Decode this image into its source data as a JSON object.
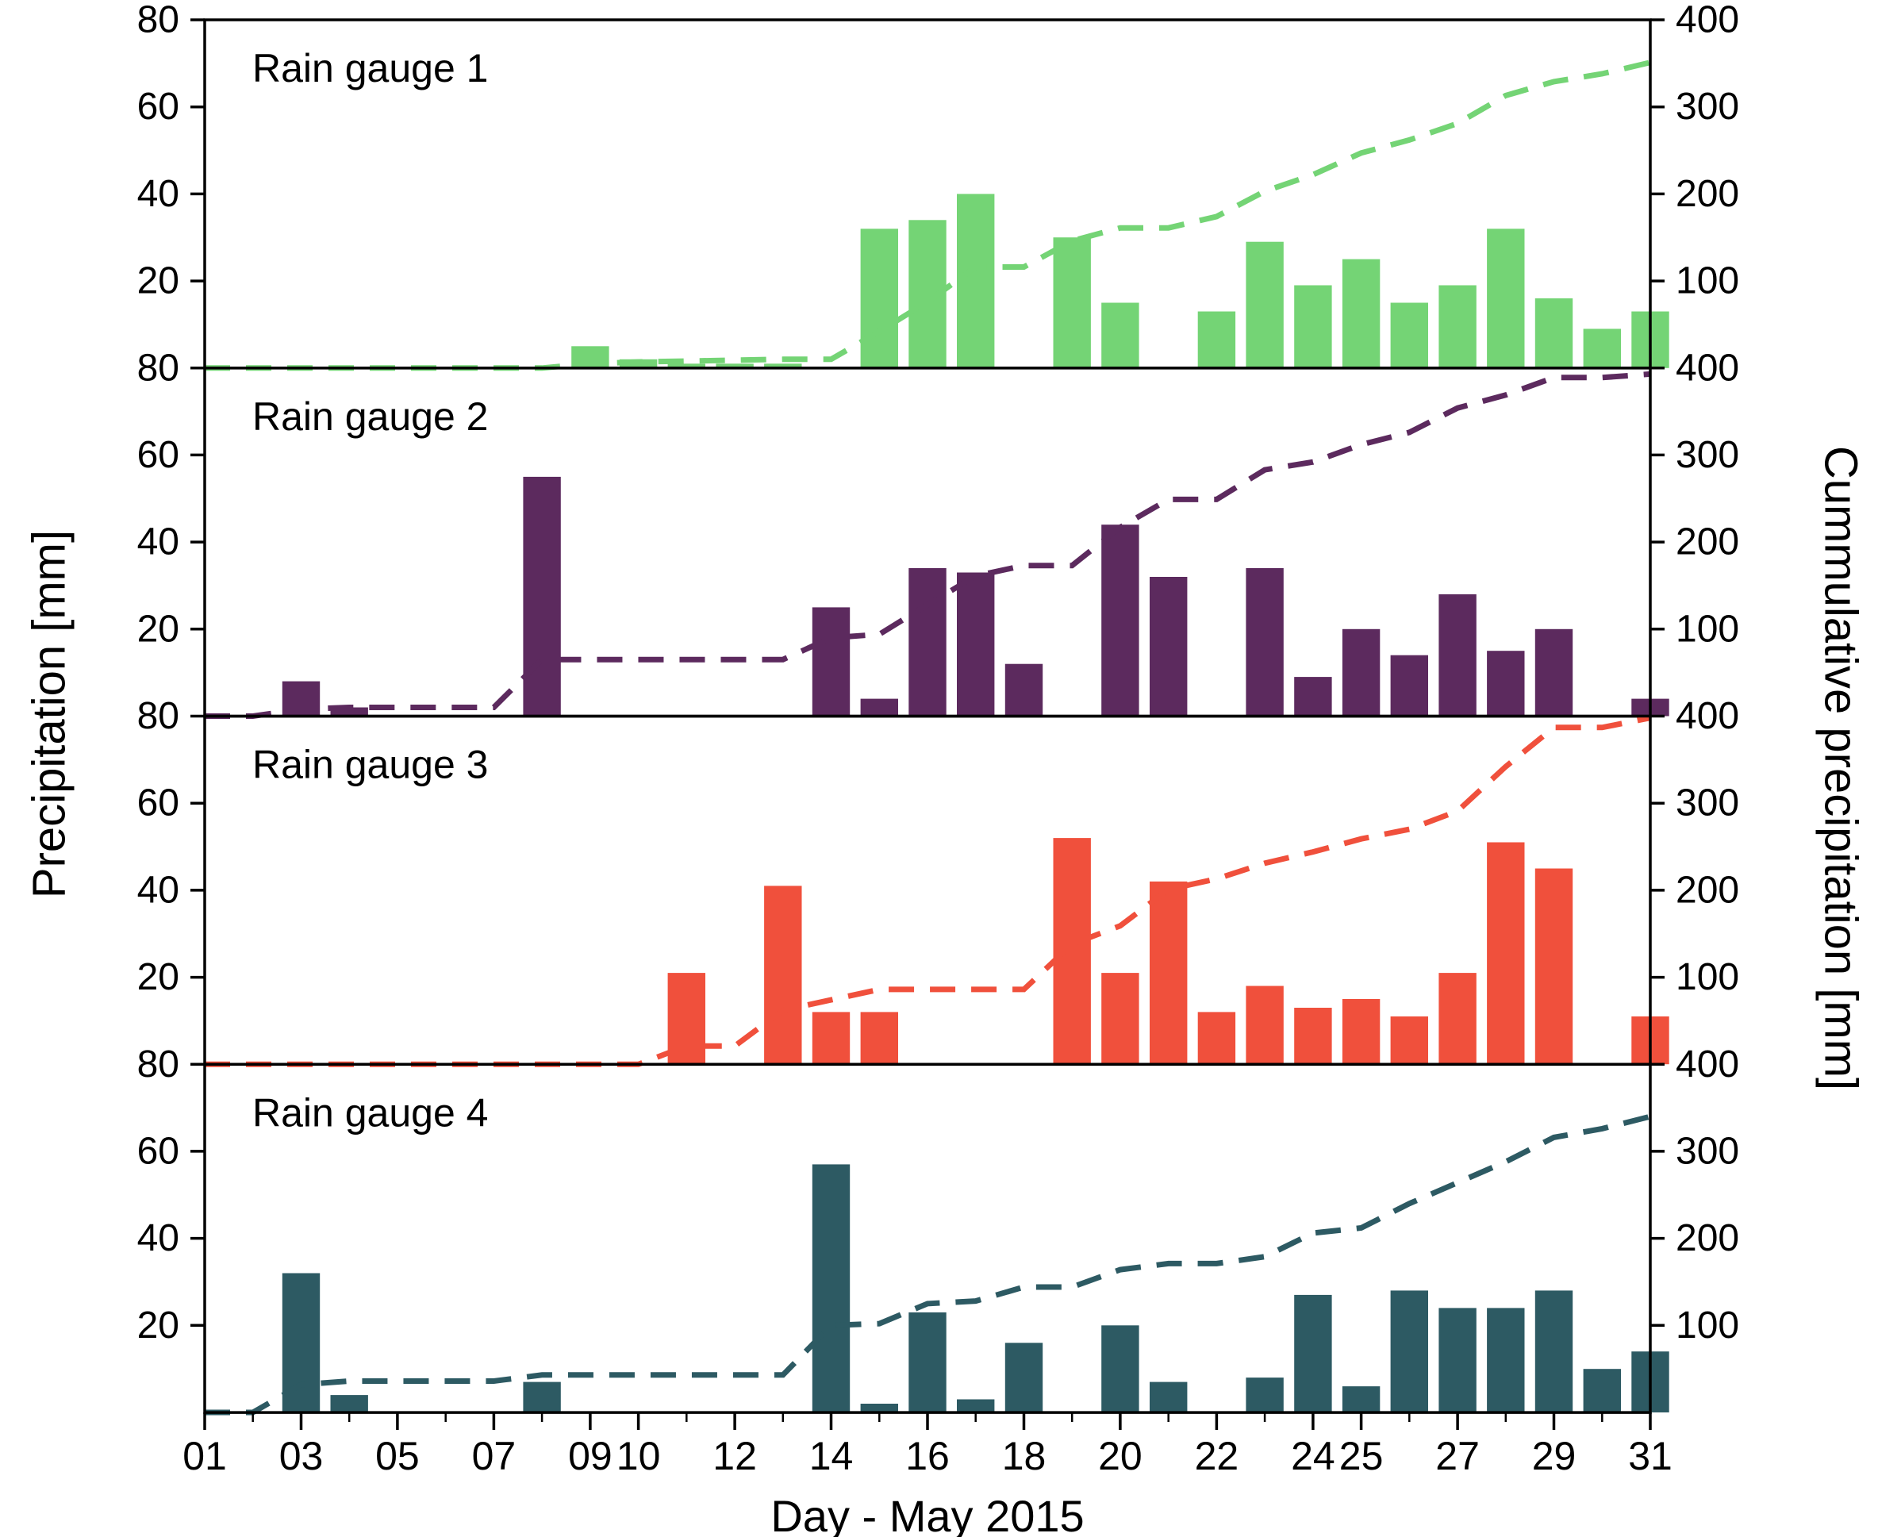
{
  "figure": {
    "left_ylabel": "Precipitation [mm]",
    "right_ylabel": "Cummulative precipitation [mm]",
    "xlabel": "Day - May 2015"
  },
  "chart_data": {
    "type": "bar",
    "description": "Four stacked subplots of daily precipitation (bars, left axis 0-80 mm) for May 2015 with dashed cumulative precipitation line (right axis 0-400 mm, running sum of daily values).",
    "x_days": [
      1,
      2,
      3,
      4,
      5,
      6,
      7,
      8,
      9,
      10,
      11,
      12,
      13,
      14,
      15,
      16,
      17,
      18,
      19,
      20,
      21,
      22,
      23,
      24,
      25,
      26,
      27,
      28,
      29,
      30,
      31
    ],
    "x_tick_days": [
      1,
      3,
      5,
      7,
      9,
      10,
      12,
      14,
      16,
      18,
      20,
      22,
      24,
      25,
      27,
      29,
      31
    ],
    "x_tick_labels": [
      "01",
      "03",
      "05",
      "07",
      "09",
      "10",
      "12",
      "14",
      "16",
      "18",
      "20",
      "22",
      "24",
      "25",
      "27",
      "29",
      "31"
    ],
    "left_ylim": [
      0,
      80
    ],
    "left_yticks": [
      20,
      40,
      60,
      80
    ],
    "right_ylim": [
      0,
      400
    ],
    "right_yticks": [
      100,
      200,
      300,
      400
    ],
    "grid": false,
    "panels": [
      {
        "title": "Rain gauge 1",
        "color": "#74d475",
        "values": [
          0,
          0,
          0,
          0,
          0,
          0,
          0,
          0,
          5,
          2,
          1,
          1,
          1,
          0,
          32,
          34,
          40,
          0,
          30,
          15,
          0,
          13,
          29,
          19,
          25,
          15,
          19,
          32,
          16,
          9,
          13
        ]
      },
      {
        "title": "Rain gauge 2",
        "color": "#5c2a5e",
        "values": [
          0,
          0,
          8,
          2,
          0,
          0,
          0,
          55,
          0,
          0,
          0,
          0,
          0,
          25,
          4,
          34,
          33,
          12,
          0,
          44,
          32,
          0,
          34,
          9,
          20,
          14,
          28,
          15,
          20,
          0,
          4
        ]
      },
      {
        "title": "Rain gauge 3",
        "color": "#f0503c",
        "values": [
          0,
          0,
          0,
          0,
          0,
          0,
          0,
          0,
          0,
          0,
          21,
          0,
          41,
          12,
          12,
          0,
          0,
          0,
          52,
          21,
          42,
          12,
          18,
          13,
          15,
          11,
          21,
          51,
          45,
          0,
          11
        ]
      },
      {
        "title": "Rain gauge 4",
        "color": "#2d5a63",
        "values": [
          0,
          0,
          32,
          4,
          0,
          0,
          0,
          7,
          0,
          0,
          0,
          0,
          0,
          57,
          2,
          23,
          3,
          16,
          0,
          20,
          7,
          0,
          8,
          27,
          6,
          28,
          24,
          24,
          28,
          10,
          14
        ]
      }
    ],
    "cumulative_line": {
      "style": "dashed",
      "axis": "right",
      "definition": "running sum of daily values per panel"
    }
  }
}
